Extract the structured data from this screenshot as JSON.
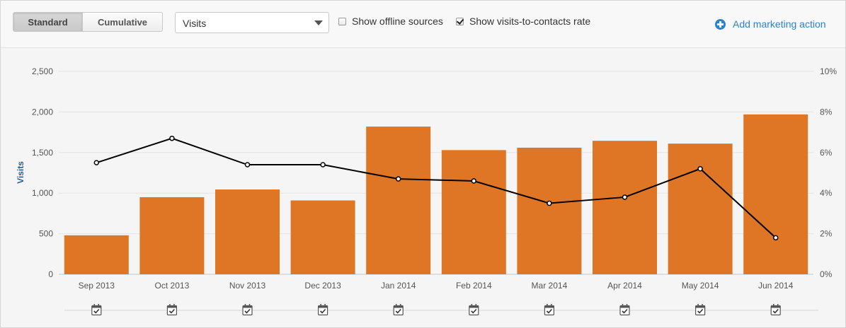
{
  "toolbar": {
    "standard_label": "Standard",
    "cumulative_label": "Cumulative",
    "metric_value": "Visits",
    "offline_label": "Show offline sources",
    "offline_checked": false,
    "rate_label": "Show visits-to-contacts rate",
    "rate_checked": true,
    "add_action_label": "Add marketing action"
  },
  "colors": {
    "bar": "#df7625",
    "line": "#000000",
    "link": "#2f80c9"
  },
  "chart_data": {
    "type": "bar",
    "categories": [
      "Sep 2013",
      "Oct 2013",
      "Nov 2013",
      "Dec 2013",
      "Jan 2014",
      "Feb 2014",
      "Mar 2014",
      "Apr 2014",
      "May 2014",
      "Jun 2014"
    ],
    "series": [
      {
        "name": "Visits",
        "type": "bar",
        "axis": "left",
        "values": [
          480,
          950,
          1045,
          910,
          1820,
          1530,
          1560,
          1645,
          1610,
          1970
        ]
      },
      {
        "type": "line",
        "axis": "right",
        "values": [
          5.5,
          6.7,
          5.4,
          5.4,
          4.7,
          4.6,
          3.5,
          3.8,
          5.2,
          1.8
        ]
      }
    ],
    "ylabel": "Visits",
    "ylim": [
      0,
      2500
    ],
    "yticks": [
      "0",
      "500",
      "1,000",
      "1,500",
      "2,000",
      "2,500"
    ],
    "y2lim": [
      0,
      10
    ],
    "y2ticks": [
      "0%",
      "2%",
      "4%",
      "6%",
      "8%",
      "10%"
    ],
    "grid": true,
    "legend": "none",
    "marker_icon": "calendar-check-icon"
  }
}
